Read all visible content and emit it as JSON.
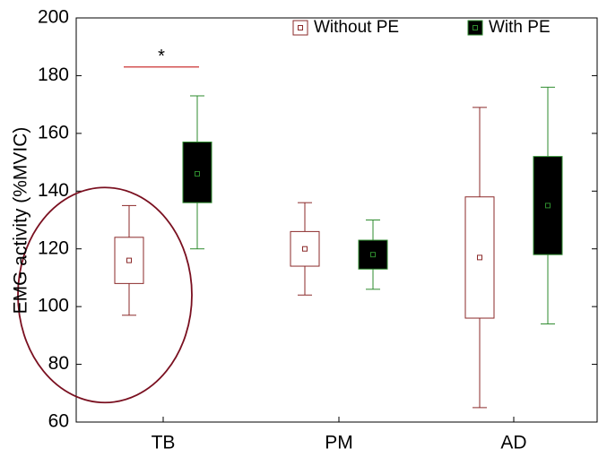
{
  "chart_data": {
    "type": "box",
    "categories": [
      "TB",
      "PM",
      "AD"
    ],
    "ylabel": "EMG activity (%MVIC)",
    "xlabel": "",
    "ylim": [
      60,
      200
    ],
    "yticks": [
      60,
      80,
      100,
      120,
      140,
      160,
      180,
      200
    ],
    "grid": false,
    "legend_position": "top-right",
    "series": [
      {
        "name": "Without PE",
        "fill": "#ffffff",
        "stroke": "#8b2a2a",
        "marker": "#8b2a2a",
        "boxes": [
          {
            "min": 97,
            "q1": 108,
            "median": 116,
            "q3": 124,
            "max": 135
          },
          {
            "min": 104,
            "q1": 114,
            "median": 120,
            "q3": 126,
            "max": 136
          },
          {
            "min": 65,
            "q1": 96,
            "median": 117,
            "q3": 138,
            "max": 169
          }
        ]
      },
      {
        "name": "With PE",
        "fill": "#000000",
        "stroke": "#2e8b2e",
        "marker": "#2e8b2e",
        "boxes": [
          {
            "min": 120,
            "q1": 136,
            "median": 146,
            "q3": 157,
            "max": 173
          },
          {
            "min": 106,
            "q1": 113,
            "median": 118,
            "q3": 123,
            "max": 130
          },
          {
            "min": 94,
            "q1": 118,
            "median": 135,
            "q3": 152,
            "max": 176
          }
        ]
      }
    ],
    "annotations": [
      {
        "text": "*",
        "category": "TB",
        "y": 183,
        "line_color": "#cc3333"
      }
    ],
    "highlight": {
      "shape": "ellipse",
      "category": "TB",
      "color": "#7a1020"
    }
  }
}
